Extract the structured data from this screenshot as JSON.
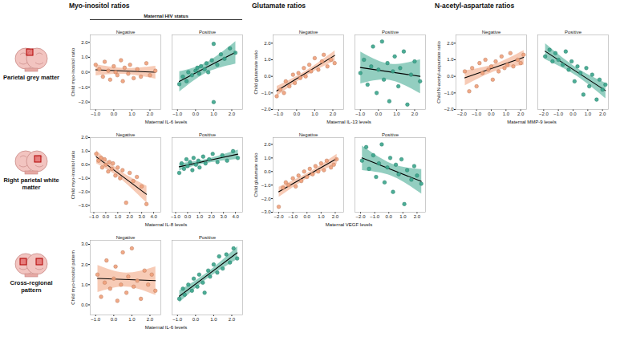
{
  "column_titles": [
    "Myo-inositol ratios",
    "Glutamate ratios",
    "N-acetyl-aspartate ratios"
  ],
  "row_titles": [
    "Parietal grey matter",
    "Right parietal white matter",
    "Cross-regional pattern"
  ],
  "legend_title": "Maternal HIV status",
  "chart_data": [
    {
      "type": "scatter",
      "x_label": "Maternal IL-6 levels",
      "y_label": "Child myo-inositol ratio",
      "xlim": [
        -1.3,
        2.6
      ],
      "xticks": [
        -1,
        0,
        1,
        2
      ],
      "ylim": [
        -2.5,
        2.5
      ],
      "yticks": [
        -2,
        -1,
        0,
        1,
        2
      ],
      "series": [
        {
          "name": "Negative",
          "color": "#f0a07a",
          "x": [
            -1.0,
            -0.8,
            -0.6,
            -0.5,
            -0.3,
            -0.2,
            0.0,
            0.1,
            0.2,
            0.4,
            0.5,
            0.6,
            0.8,
            0.9,
            1.1,
            1.3,
            1.5,
            1.8,
            2.0,
            2.3
          ],
          "y": [
            0.5,
            0.2,
            -0.3,
            0.7,
            0.1,
            -0.5,
            0.4,
            0.0,
            -0.2,
            0.8,
            -0.6,
            0.3,
            -0.1,
            0.5,
            -0.4,
            0.2,
            -0.3,
            0.6,
            -0.2,
            0.1
          ]
        },
        {
          "name": "Positive",
          "color": "#3aa58c",
          "x": [
            -0.9,
            -0.7,
            -0.5,
            -0.4,
            -0.2,
            0.0,
            0.1,
            0.2,
            0.3,
            0.5,
            0.6,
            0.7,
            0.9,
            1.0,
            1.0,
            1.2,
            1.4,
            1.6,
            1.9,
            2.2
          ],
          "y": [
            -0.8,
            -0.3,
            -0.6,
            0.0,
            -0.2,
            0.1,
            0.3,
            -0.1,
            0.4,
            0.2,
            0.6,
            0.0,
            0.8,
            1.9,
            -2.0,
            0.5,
            1.2,
            0.9,
            1.6,
            1.3
          ]
        }
      ]
    },
    {
      "type": "scatter",
      "x_label": "Maternal IL-13 levels",
      "y_label": "Child glutamate ratio",
      "xlim": [
        -1.3,
        2.6
      ],
      "xticks": [
        -1,
        0,
        1,
        2
      ],
      "ylim": [
        -2,
        2.5
      ],
      "yticks": [
        -2,
        -1,
        0,
        1,
        2
      ],
      "series": [
        {
          "name": "Negative",
          "color": "#f0a07a",
          "x": [
            -1.1,
            -0.9,
            -0.7,
            -0.6,
            -0.4,
            -0.2,
            -0.1,
            0.1,
            0.2,
            0.4,
            0.5,
            0.7,
            0.8,
            1.0,
            1.2,
            1.4,
            1.5,
            1.7,
            1.9,
            2.1
          ],
          "y": [
            -1.2,
            -0.8,
            -1.0,
            -0.3,
            -0.6,
            0.1,
            -0.4,
            0.2,
            -0.1,
            0.5,
            0.0,
            0.7,
            0.3,
            1.1,
            0.4,
            0.9,
            1.3,
            0.6,
            1.0,
            0.8
          ]
        },
        {
          "name": "Positive",
          "color": "#3aa58c",
          "x": [
            -1.0,
            -0.8,
            -0.6,
            -0.4,
            -0.3,
            -0.1,
            0.0,
            0.2,
            0.3,
            0.5,
            0.6,
            0.8,
            0.9,
            1.1,
            1.2,
            1.4,
            1.6,
            1.8,
            2.0,
            2.3
          ],
          "y": [
            0.2,
            1.0,
            -0.5,
            0.6,
            1.8,
            -1.0,
            0.4,
            2.1,
            -0.2,
            0.8,
            -1.5,
            0.3,
            1.2,
            -0.6,
            0.5,
            1.5,
            -1.7,
            0.1,
            0.9,
            -0.3
          ]
        }
      ]
    },
    {
      "type": "scatter",
      "x_label": "Maternal MMP-9 levels",
      "y_label": "Child N-acetyl-aspartate ratio",
      "xlim": [
        -2.4,
        2.4
      ],
      "xticks": [
        -2,
        -1,
        0,
        1,
        2
      ],
      "ylim": [
        -2,
        2.5
      ],
      "yticks": [
        -2,
        -1,
        0,
        1,
        2
      ],
      "series": [
        {
          "name": "Negative",
          "color": "#f0a07a",
          "x": [
            -1.8,
            -1.5,
            -1.3,
            -1.0,
            -0.8,
            -0.6,
            -0.4,
            -0.2,
            0.0,
            0.1,
            0.3,
            0.5,
            0.7,
            0.9,
            1.1,
            1.3,
            1.5,
            1.8,
            2.0,
            2.2
          ],
          "y": [
            0.3,
            -0.9,
            0.5,
            -0.6,
            0.8,
            0.2,
            1.0,
            0.4,
            0.6,
            -0.2,
            0.9,
            0.3,
            1.2,
            0.5,
            0.7,
            1.4,
            0.6,
            1.0,
            0.8,
            1.3
          ]
        },
        {
          "name": "Positive",
          "color": "#3aa58c",
          "x": [
            -1.9,
            -1.6,
            -1.4,
            -1.2,
            -1.0,
            -0.7,
            -0.5,
            -0.3,
            -0.1,
            0.1,
            0.3,
            0.5,
            0.7,
            0.9,
            1.1,
            1.3,
            1.6,
            1.8,
            2.0,
            2.2
          ],
          "y": [
            1.2,
            1.6,
            0.9,
            1.4,
            1.0,
            0.7,
            1.5,
            0.4,
            0.9,
            -0.3,
            0.6,
            0.2,
            -1.1,
            0.5,
            -0.6,
            0.1,
            -1.4,
            -0.2,
            -0.8,
            -0.5
          ]
        }
      ]
    },
    {
      "type": "scatter",
      "x_label": "Maternal IL-8 levels",
      "y_label": "Child myo-inositol ratio",
      "xlim": [
        -1.3,
        4.6
      ],
      "xticks": [
        -1,
        0,
        1,
        2,
        3,
        4
      ],
      "ylim": [
        -3.5,
        2
      ],
      "yticks": [
        -3,
        -2,
        -1,
        0,
        1,
        2
      ],
      "series": [
        {
          "name": "Negative",
          "color": "#f0a07a",
          "x": [
            -0.8,
            -0.6,
            -0.4,
            -0.3,
            -0.1,
            0.0,
            0.2,
            0.3,
            0.5,
            0.6,
            0.8,
            1.0,
            1.2,
            1.4,
            1.7,
            2.0,
            2.3,
            2.6,
            3.0,
            3.4
          ],
          "y": [
            0.8,
            0.3,
            0.5,
            -0.2,
            0.4,
            0.0,
            -0.5,
            0.2,
            -0.3,
            0.1,
            -0.8,
            -0.2,
            -1.0,
            -0.4,
            -2.8,
            -0.6,
            -1.2,
            -0.9,
            -1.6,
            -2.9
          ]
        },
        {
          "name": "Positive",
          "color": "#3aa58c",
          "x": [
            -0.7,
            -0.5,
            -0.3,
            -0.1,
            0.0,
            0.2,
            0.4,
            0.5,
            0.7,
            0.9,
            1.0,
            1.3,
            1.5,
            1.8,
            2.1,
            2.5,
            2.9,
            3.3,
            3.8,
            4.2
          ],
          "y": [
            -0.6,
            0.1,
            -0.3,
            0.4,
            -0.1,
            0.2,
            -0.4,
            0.5,
            0.0,
            0.3,
            -0.2,
            0.6,
            0.1,
            0.4,
            0.8,
            0.2,
            0.7,
            0.3,
            1.0,
            0.5
          ]
        }
      ]
    },
    {
      "type": "scatter",
      "x_label": "Maternal VEGF levels",
      "y_label": "Child glutamate ratio",
      "xlim": [
        -2.4,
        2.6
      ],
      "xticks": [
        -2,
        -1,
        0,
        1,
        2
      ],
      "ylim": [
        -3,
        2.5
      ],
      "yticks": [
        -3,
        -2,
        -1,
        0,
        1,
        2
      ],
      "series": [
        {
          "name": "Negative",
          "color": "#f0a07a",
          "x": [
            -2.0,
            -1.7,
            -1.5,
            -1.3,
            -1.0,
            -0.8,
            -0.6,
            -0.4,
            -0.2,
            0.0,
            0.2,
            0.4,
            0.6,
            0.8,
            1.0,
            1.2,
            1.4,
            1.7,
            1.9,
            2.1
          ],
          "y": [
            -2.6,
            -1.2,
            -0.8,
            -1.0,
            -0.5,
            -1.1,
            -0.3,
            -0.7,
            0.0,
            -0.4,
            0.2,
            -0.2,
            0.4,
            0.0,
            0.6,
            0.1,
            0.8,
            0.3,
            0.5,
            0.9
          ]
        },
        {
          "name": "Positive",
          "color": "#3aa58c",
          "x": [
            -1.9,
            -1.6,
            -1.4,
            -1.1,
            -0.9,
            -0.7,
            -0.5,
            -0.3,
            -0.1,
            0.1,
            0.3,
            0.5,
            0.7,
            0.9,
            1.1,
            1.3,
            1.6,
            1.8,
            2.0,
            2.3
          ],
          "y": [
            0.8,
            1.8,
            0.2,
            1.2,
            -0.4,
            0.6,
            2.0,
            -0.8,
            0.3,
            1.0,
            -1.5,
            0.5,
            -0.2,
            0.9,
            -2.4,
            0.1,
            -0.6,
            0.4,
            -0.3,
            -0.9
          ]
        }
      ]
    },
    {
      "type": "scatter",
      "x_label": "Maternal IL-6 levels",
      "y_label": "Child myo-inositol pattern",
      "xlim": [
        -1.3,
        2.6
      ],
      "xticks": [
        -1,
        0,
        1,
        2
      ],
      "ylim": [
        -0.5,
        3.2
      ],
      "yticks": [
        0,
        1,
        2,
        3
      ],
      "series": [
        {
          "name": "Negative",
          "color": "#f0a07a",
          "x": [
            -0.9,
            -0.7,
            -0.5,
            -0.4,
            -0.2,
            0.0,
            0.1,
            0.2,
            0.4,
            0.5,
            0.7,
            0.8,
            1.0,
            1.1,
            1.3,
            1.5,
            1.7,
            1.9,
            2.1,
            2.3
          ],
          "y": [
            1.5,
            0.4,
            1.1,
            2.2,
            0.8,
            1.3,
            1.9,
            0.2,
            1.0,
            2.6,
            0.6,
            1.4,
            2.8,
            0.9,
            1.2,
            0.3,
            1.7,
            1.0,
            1.5,
            0.7
          ]
        },
        {
          "name": "Positive",
          "color": "#3aa58c",
          "x": [
            -0.9,
            -0.7,
            -0.6,
            -0.4,
            -0.2,
            -0.1,
            0.1,
            0.2,
            0.4,
            0.5,
            0.7,
            0.8,
            1.0,
            1.2,
            1.3,
            1.5,
            1.7,
            1.9,
            2.1,
            2.3
          ],
          "y": [
            0.3,
            0.8,
            0.5,
            1.0,
            0.7,
            1.3,
            0.9,
            1.5,
            1.1,
            0.6,
            1.7,
            1.4,
            2.0,
            1.6,
            2.4,
            1.8,
            2.5,
            2.1,
            2.8,
            2.3
          ]
        }
      ]
    }
  ]
}
